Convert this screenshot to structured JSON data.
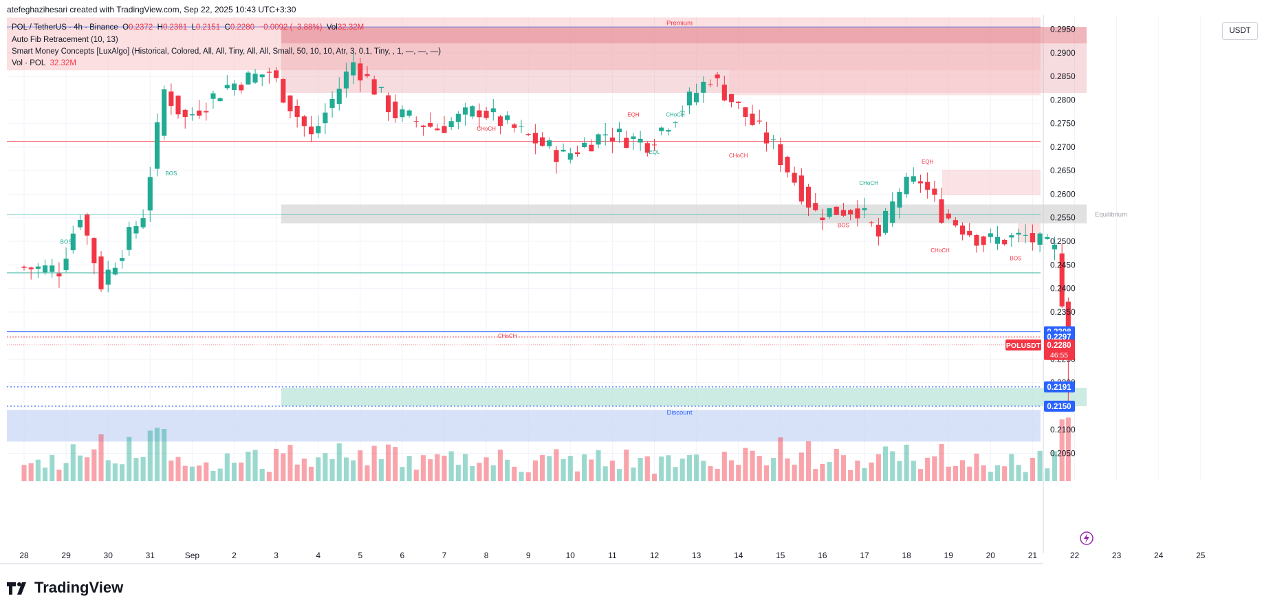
{
  "header": {
    "attribution": "atefeghazihesari created with TradingView.com, Sep 22, 2025 10:43 UTC+3:30"
  },
  "legend": {
    "symbol": "POL / TetherUS · 4h · Binance",
    "o_label": "O",
    "o_value": "0.2372",
    "h_label": "H",
    "h_value": "0.2381",
    "l_label": "L",
    "l_value": "0.2151",
    "c_label": "C",
    "c_value": "0.2280",
    "change": "−0.0092 (−3.88%)",
    "vol_label": "Vol",
    "vol_value": "32.32M",
    "indicator_fib": "Auto Fib Retracement (10, 13)",
    "indicator_smc": "Smart Money Concepts [LuxAlgo] (Historical, Colored, All, All, Tiny, All, All, Small, 50, 10, 10, Atr, 3, 0.1, Tiny, , 1, —, —, —)",
    "vol_indicator": "Vol · POL",
    "vol_indicator_value": "32.32M"
  },
  "currency_button": "USDT",
  "logo_text": "TradingView",
  "colors": {
    "up": "#22ab94",
    "down": "#f23645",
    "premium": "#f7c5c9",
    "discount": "#c9d8f7",
    "equilibrium": "#d4d4d4"
  },
  "chart_data": {
    "type": "candlestick",
    "symbol": "POLUSDT",
    "ylim": [
      0.202,
      0.298
    ],
    "y_ticks": [
      "0.2050",
      "0.2100",
      "0.2150",
      "0.2200",
      "0.2250",
      "0.2300",
      "0.2350",
      "0.2400",
      "0.2450",
      "0.2500",
      "0.2550",
      "0.2600",
      "0.2650",
      "0.2700",
      "0.2750",
      "0.2800",
      "0.2850",
      "0.2900",
      "0.2950"
    ],
    "x_ticks": [
      "28",
      "29",
      "30",
      "31",
      "Sep",
      "2",
      "3",
      "4",
      "5",
      "6",
      "7",
      "8",
      "9",
      "10",
      "11",
      "12",
      "13",
      "14",
      "15",
      "16",
      "17",
      "18",
      "19",
      "20",
      "21",
      "22",
      "23",
      "24",
      "25"
    ],
    "price_labels": [
      {
        "value": "0.2308",
        "color": "#2962ff"
      },
      {
        "value": "0.2297",
        "color": "#2962ff"
      },
      {
        "value": "0.2191",
        "color": "#2962ff"
      },
      {
        "value": "0.2150",
        "color": "#2962ff"
      }
    ],
    "last_price": {
      "symbol": "POLUSDT",
      "value": "0.2280",
      "countdown": "46:55"
    },
    "zones": {
      "premium": "Premium",
      "equilibrium": "Equilibrium",
      "discount": "Discount"
    },
    "structure_labels": [
      "BOS",
      "BOS",
      "CHoCH",
      "EQH",
      "CHoCH",
      "EQL",
      "CHoCH",
      "CHoCH",
      "BOS",
      "EQH",
      "CHoCH",
      "BOS",
      "CHoCH"
    ],
    "anchors": [
      {
        "day": "28",
        "price": 0.2445
      },
      {
        "day": "29",
        "price": 0.244
      },
      {
        "day": "29.5",
        "price": 0.256
      },
      {
        "day": "30",
        "price": 0.241
      },
      {
        "day": "31",
        "price": 0.256
      },
      {
        "day": "31.5",
        "price": 0.282
      },
      {
        "day": "Sep",
        "price": 0.276
      },
      {
        "day": "2",
        "price": 0.283
      },
      {
        "day": "3",
        "price": 0.286
      },
      {
        "day": "4",
        "price": 0.272
      },
      {
        "day": "5",
        "price": 0.288
      },
      {
        "day": "6",
        "price": 0.277
      },
      {
        "day": "7",
        "price": 0.274
      },
      {
        "day": "8",
        "price": 0.278
      },
      {
        "day": "9",
        "price": 0.273
      },
      {
        "day": "10",
        "price": 0.268
      },
      {
        "day": "11",
        "price": 0.273
      },
      {
        "day": "12",
        "price": 0.271
      },
      {
        "day": "13",
        "price": 0.28
      },
      {
        "day": "13.5",
        "price": 0.285
      },
      {
        "day": "14",
        "price": 0.28
      },
      {
        "day": "15",
        "price": 0.27
      },
      {
        "day": "16",
        "price": 0.256
      },
      {
        "day": "17",
        "price": 0.257
      },
      {
        "day": "17.5",
        "price": 0.251
      },
      {
        "day": "18",
        "price": 0.261
      },
      {
        "day": "18.5",
        "price": 0.263
      },
      {
        "day": "19",
        "price": 0.256
      },
      {
        "day": "20",
        "price": 0.25
      },
      {
        "day": "21",
        "price": 0.251
      },
      {
        "day": "21.7",
        "price": 0.248
      },
      {
        "day": "22",
        "price": 0.228
      }
    ]
  }
}
